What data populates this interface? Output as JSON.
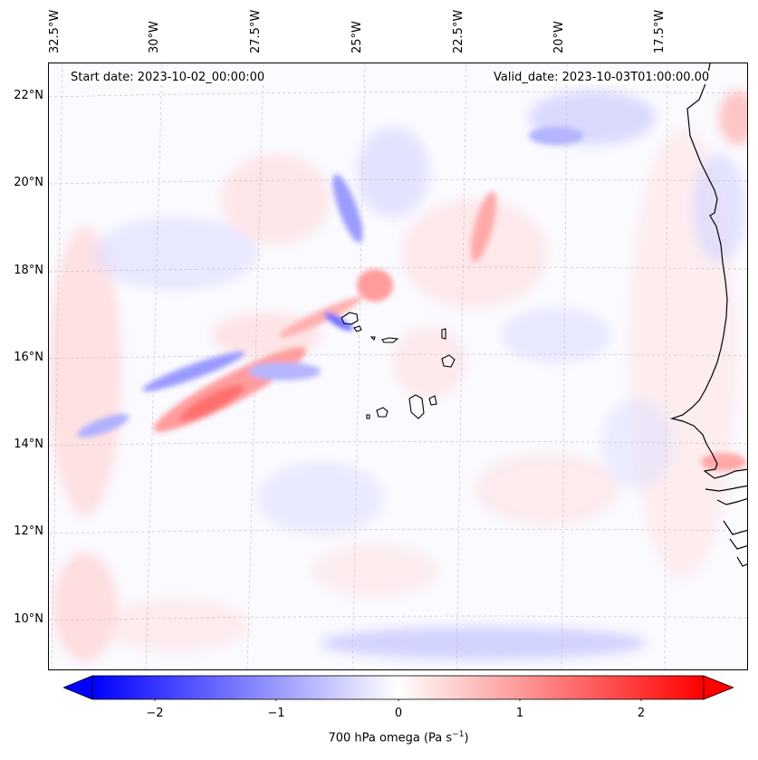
{
  "header": {
    "start_date": "Start date: 2023-10-02_00:00:00",
    "valid_date": "Valid_date: 2023-10-03T01:00:00.00"
  },
  "lon_labels": [
    "32.5°W",
    "30°W",
    "27.5°W",
    "25°W",
    "22.5°W",
    "20°W",
    "17.5°W"
  ],
  "lat_labels": [
    "22°N",
    "20°N",
    "18°N",
    "16°N",
    "14°N",
    "12°N",
    "10°N"
  ],
  "colorbar": {
    "title_main": "700 hPa omega (Pa s",
    "title_sup": "−1",
    "title_end": ")",
    "ticks": [
      "−2",
      "−1",
      "0",
      "1",
      "2"
    ],
    "tick_values": [
      -2,
      -1,
      0,
      1,
      2
    ],
    "range": [
      -2.5,
      2.5
    ],
    "colormap": "bwr",
    "extend": "both"
  },
  "colors": {
    "neg": "#0000ff",
    "zero": "#ffffff",
    "pos": "#ff0000",
    "coast": "#000000",
    "grid": "#bbbbbb"
  },
  "map": {
    "projection": "Lambert conformal",
    "lon_range": [
      -33,
      -15
    ],
    "lat_range": [
      9,
      23
    ],
    "gridlines": true,
    "features": [
      "Cape Verde islands",
      "West African coast"
    ]
  }
}
